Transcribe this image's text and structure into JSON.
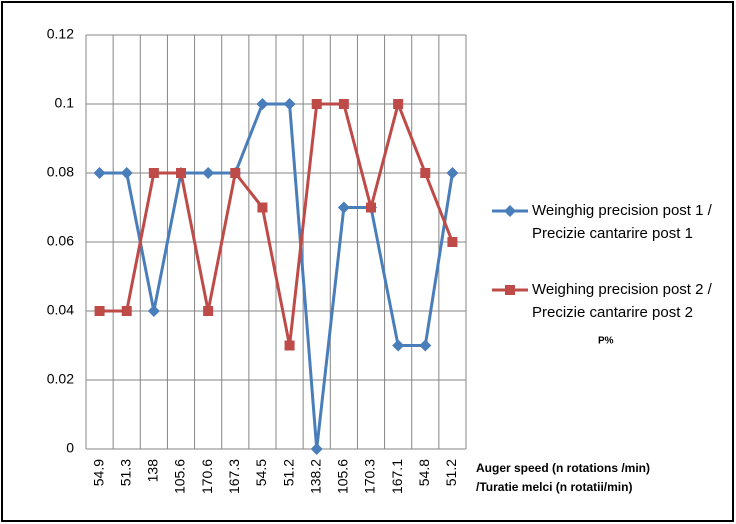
{
  "chart_data": {
    "type": "line",
    "categories": [
      "54.9",
      "51.3",
      "138",
      "105.6",
      "170.6",
      "167.3",
      "54.5",
      "51.2",
      "138.2",
      "105.6",
      "170.3",
      "167.1",
      "54.8",
      "51.2"
    ],
    "series": [
      {
        "name": "Weinghig precision post 1 / Precizie cantarire post 1",
        "color": "#4a7ebb",
        "marker": "diamond",
        "values": [
          0.08,
          0.08,
          0.04,
          0.08,
          0.08,
          0.08,
          0.1,
          0.1,
          0,
          0.07,
          0.07,
          0.03,
          0.03,
          0.08
        ]
      },
      {
        "name": "Weighing precision post 2 / Precizie cantarire post 2",
        "color": "#be4b48",
        "marker": "square",
        "values": [
          0.04,
          0.04,
          0.08,
          0.08,
          0.04,
          0.08,
          0.07,
          0.03,
          0.1,
          0.1,
          0.07,
          0.1,
          0.08,
          0.06
        ]
      }
    ],
    "ylim": [
      0,
      0.12
    ],
    "yticks": [
      0,
      0.02,
      0.04,
      0.06,
      0.08,
      0.1,
      0.12
    ],
    "grid": true,
    "x_label": [
      "Auger speed (n rotations /min)",
      "/Turatie melci  (n rotatii/min)"
    ],
    "annotation": "P%",
    "legend": "right"
  }
}
